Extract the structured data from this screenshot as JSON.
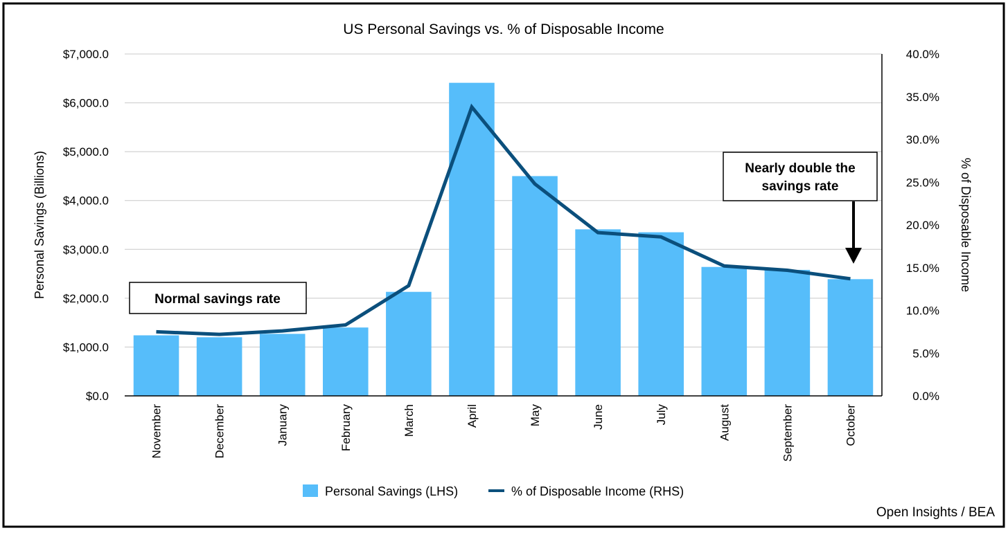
{
  "chart_data": {
    "type": "bar",
    "title": "US Personal Savings vs. % of Disposable Income",
    "categories": [
      "November",
      "December",
      "January",
      "February",
      "March",
      "April",
      "May",
      "June",
      "July",
      "August",
      "September",
      "October"
    ],
    "series": [
      {
        "name": "Personal Savings (LHS)",
        "type": "bar",
        "axis": "left",
        "color": "#56bdfa",
        "values": [
          1240,
          1200,
          1270,
          1400,
          2130,
          6410,
          4500,
          3410,
          3350,
          2640,
          2580,
          2390
        ]
      },
      {
        "name": "% of Disposable Income (RHS)",
        "type": "line",
        "axis": "right",
        "color": "#0b4f7c",
        "values": [
          7.5,
          7.2,
          7.6,
          8.3,
          12.9,
          33.8,
          24.8,
          19.1,
          18.6,
          15.2,
          14.7,
          13.7
        ]
      }
    ],
    "ylabel": "Personal Savings (Billions)",
    "y2label": "% of Disposable Income",
    "ylim": [
      0,
      7000
    ],
    "y2lim": [
      0,
      40
    ],
    "yticks": [
      "$0.0",
      "$1,000.0",
      "$2,000.0",
      "$3,000.0",
      "$4,000.0",
      "$5,000.0",
      "$6,000.0",
      "$7,000.0"
    ],
    "y2ticks": [
      "0.0%",
      "5.0%",
      "10.0%",
      "15.0%",
      "20.0%",
      "25.0%",
      "30.0%",
      "35.0%",
      "40.0%"
    ],
    "grid": true,
    "legend": "bottom-center",
    "annotations": {
      "normal": "Normal savings rate",
      "double_line1": "Nearly double the",
      "double_line2": "savings rate"
    },
    "source": "Open Insights / BEA"
  }
}
